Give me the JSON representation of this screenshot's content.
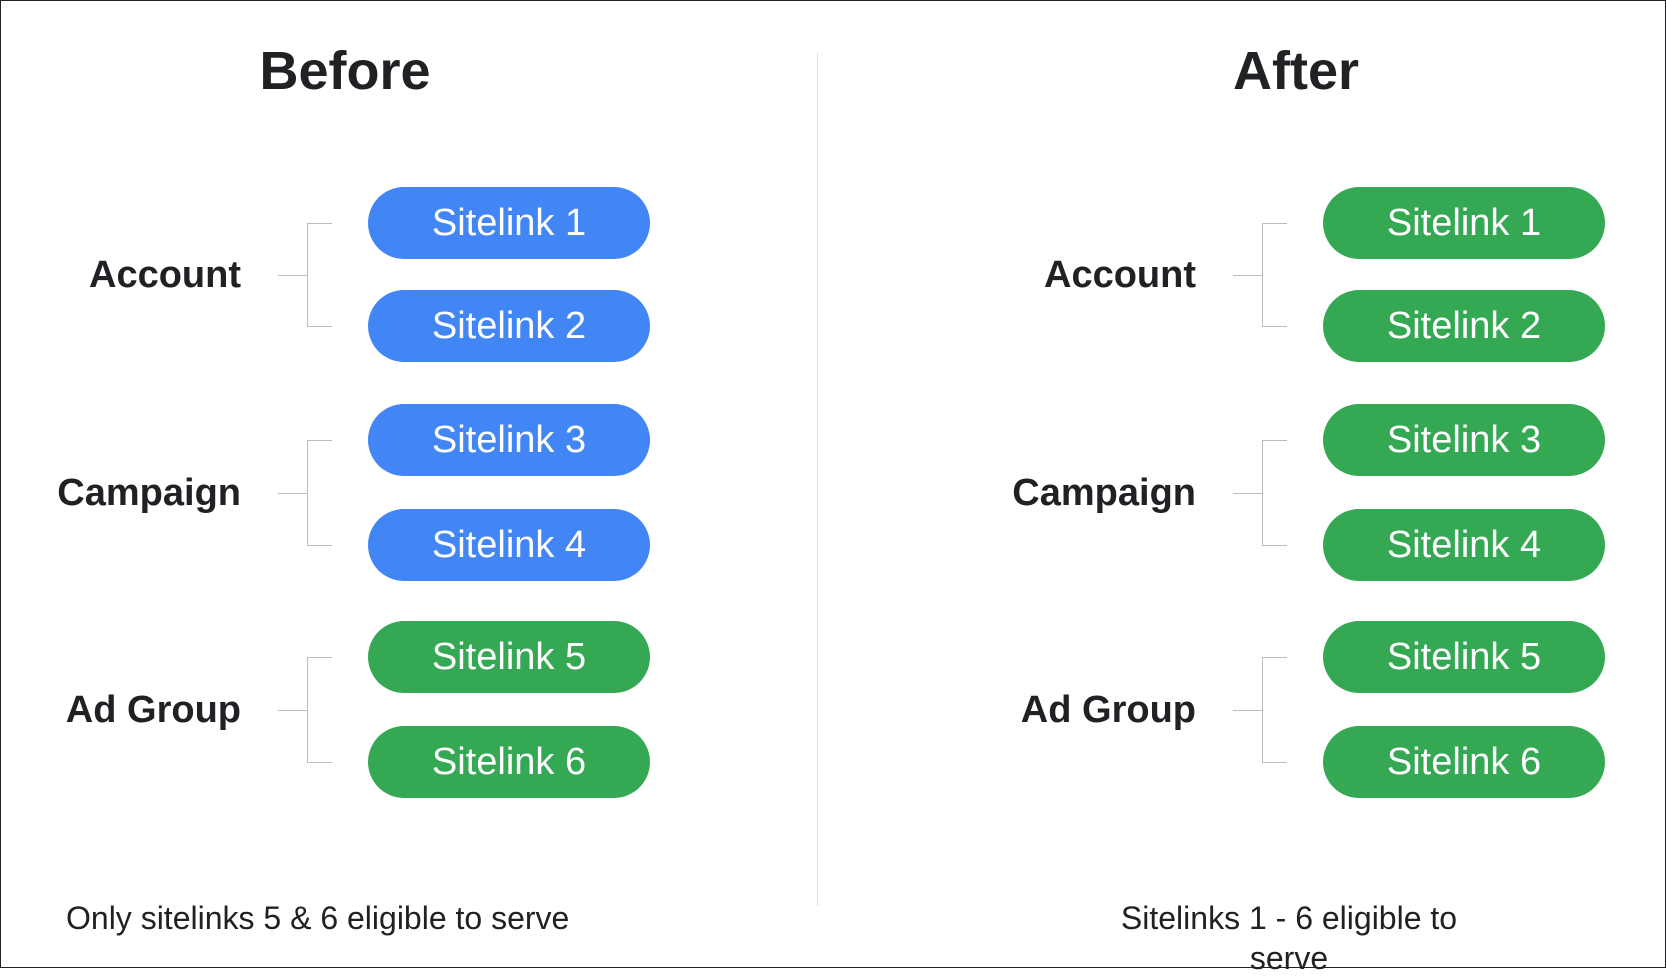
{
  "colors": {
    "account_campaign_before": "#4285F4",
    "eligible": "#34A853"
  },
  "before": {
    "title": "Before",
    "groups": [
      {
        "label": "Account",
        "sitelinks": [
          "Sitelink 1",
          "Sitelink 2"
        ]
      },
      {
        "label": "Campaign",
        "sitelinks": [
          "Sitelink 3",
          "Sitelink 4"
        ]
      },
      {
        "label": "Ad Group",
        "sitelinks": [
          "Sitelink 5",
          "Sitelink 6"
        ]
      }
    ],
    "footer": "Only sitelinks 5 & 6 eligible to serve"
  },
  "after": {
    "title": "After",
    "groups": [
      {
        "label": "Account",
        "sitelinks": [
          "Sitelink 1",
          "Sitelink 2"
        ]
      },
      {
        "label": "Campaign",
        "sitelinks": [
          "Sitelink 3",
          "Sitelink 4"
        ]
      },
      {
        "label": "Ad Group",
        "sitelinks": [
          "Sitelink 5",
          "Sitelink 6"
        ]
      }
    ],
    "footer": "Sitelinks 1 - 6 eligible to serve"
  }
}
